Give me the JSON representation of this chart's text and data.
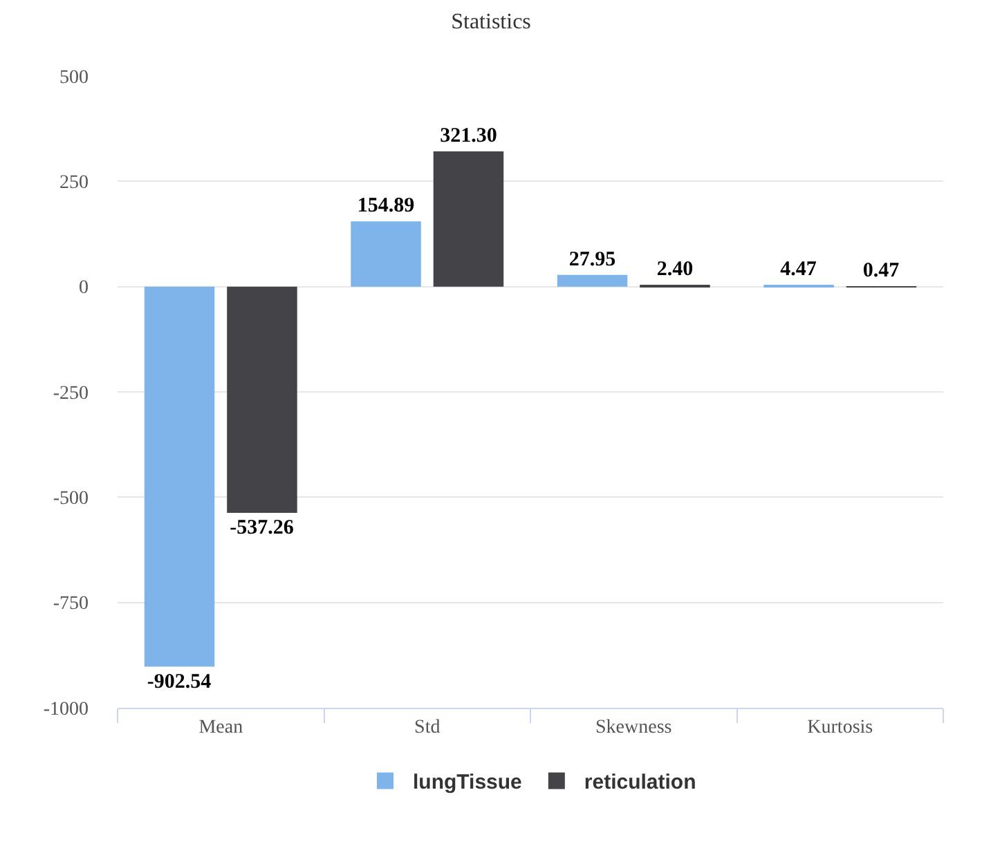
{
  "chart_data": {
    "type": "bar",
    "title": "Statistics",
    "categories": [
      "Mean",
      "Std",
      "Skewness",
      "Kurtosis"
    ],
    "series": [
      {
        "name": "lungTissue",
        "color": "#7eb4ea",
        "values": [
          -902.54,
          154.89,
          27.95,
          4.47
        ],
        "value_labels": [
          "-902.54",
          "154.89",
          "27.95",
          "4.47"
        ]
      },
      {
        "name": "reticulation",
        "color": "#434348",
        "values": [
          -537.26,
          321.3,
          2.4,
          0.47
        ],
        "value_labels": [
          "-537.26",
          "321.30",
          "2.40",
          "0.47"
        ]
      }
    ],
    "ylim": [
      -1000,
      500
    ],
    "yticks": [
      -1000,
      -750,
      -500,
      -250,
      0,
      250,
      500
    ],
    "grid": "y",
    "legend": "bottom"
  }
}
